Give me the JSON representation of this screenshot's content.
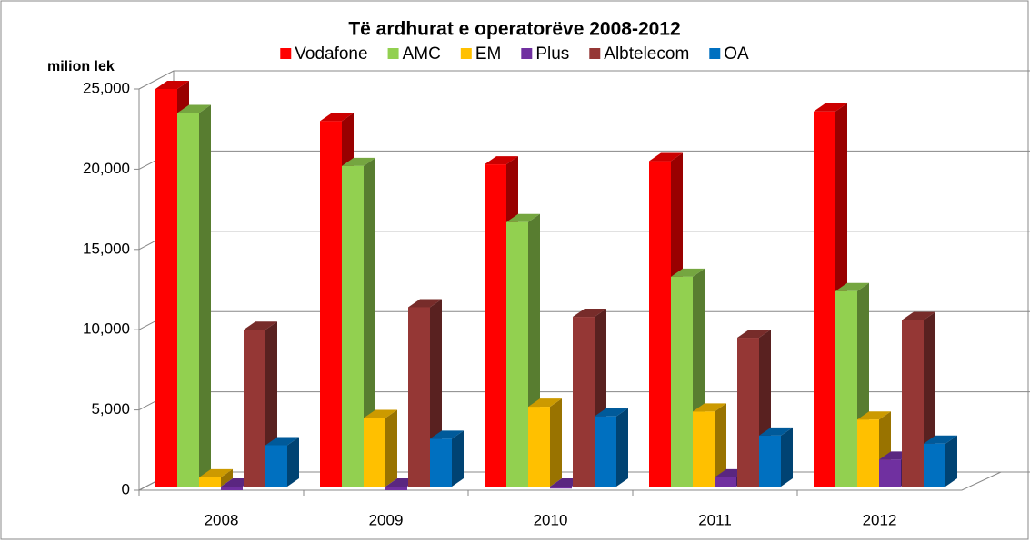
{
  "chart_data": {
    "type": "bar3d",
    "title": "Të ardhurat e operatorëve 2008-2012",
    "y_label": "milion lek",
    "categories": [
      "2008",
      "2009",
      "2010",
      "2011",
      "2012"
    ],
    "series": [
      {
        "name": "Vodafone",
        "color": "#ff0000",
        "values": [
          25000,
          23000,
          20300,
          20500,
          23600
        ]
      },
      {
        "name": "AMC",
        "color": "#92d050",
        "values": [
          23500,
          20200,
          16700,
          13300,
          12400
        ]
      },
      {
        "name": "EM",
        "color": "#ffc000",
        "values": [
          800,
          4500,
          5200,
          4900,
          4400
        ]
      },
      {
        "name": "Plus",
        "color": "#7030a0",
        "values": [
          0,
          0,
          100,
          800,
          1900
        ]
      },
      {
        "name": "Albtelecom",
        "color": "#953735",
        "values": [
          10000,
          11400,
          10800,
          9500,
          10600
        ]
      },
      {
        "name": "OA",
        "color": "#0070c0",
        "values": [
          2800,
          3200,
          4600,
          3400,
          2900
        ]
      }
    ],
    "ylim": [
      0,
      25000
    ],
    "yticks": [
      0,
      {
        "value": 5000,
        "label": "5,000"
      },
      {
        "value": 10000,
        "label": "10,000"
      },
      {
        "value": 15000,
        "label": "15,000"
      },
      {
        "value": 20000,
        "label": "20,000"
      },
      {
        "value": 25000,
        "label": "25,000"
      }
    ],
    "grid": true,
    "legend": "top"
  }
}
